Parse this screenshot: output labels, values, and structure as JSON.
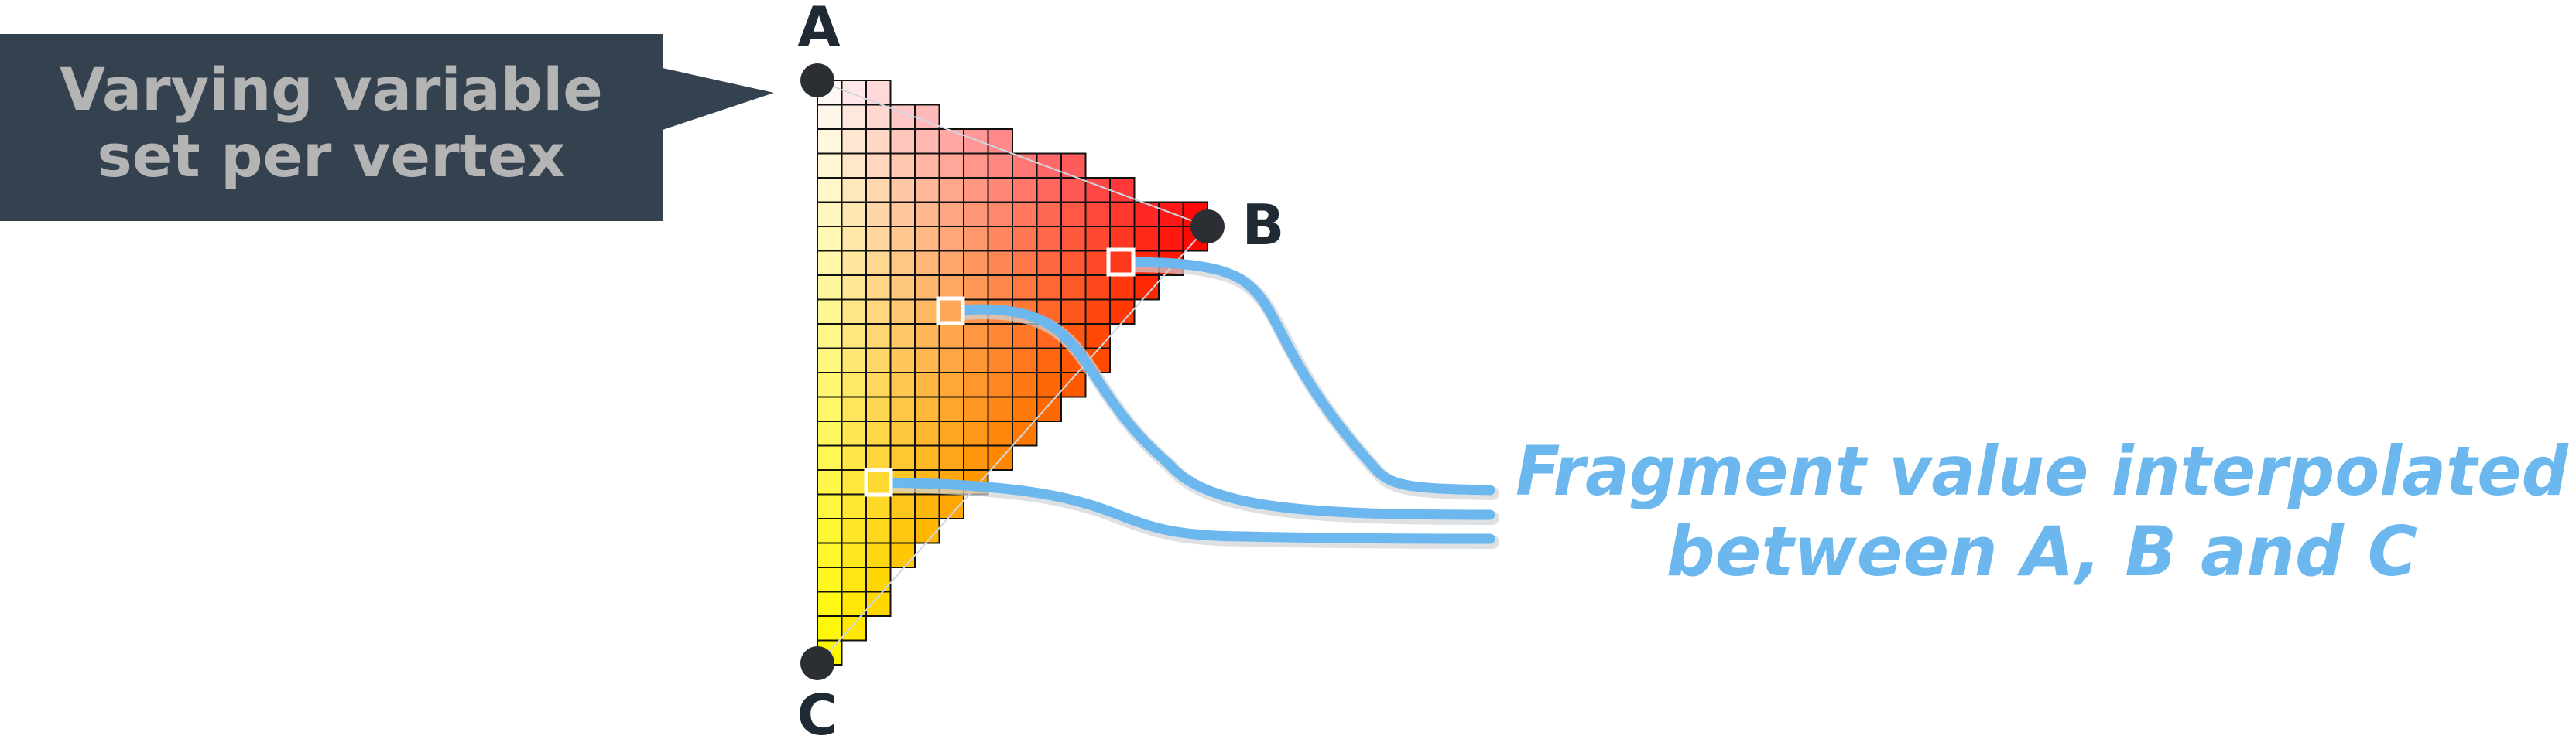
{
  "callout": {
    "line1": "Varying variable",
    "line2": "set per vertex",
    "fill_color": "#344250",
    "text_color": "#b4b4b4"
  },
  "vertices": {
    "a": {
      "label": "A",
      "color": "#ffffff"
    },
    "b": {
      "label": "B",
      "color": "#ff0000"
    },
    "c": {
      "label": "C",
      "color": "#ffff00"
    },
    "dot_color": "#2b2e33"
  },
  "fragment_label": {
    "line1": "Fragment value interpolated",
    "line2": "between A, B and C",
    "color": "#6cb8ee"
  },
  "grid": {
    "cell_stroke": "#111111",
    "sample_marker_stroke": "#ffffff"
  }
}
